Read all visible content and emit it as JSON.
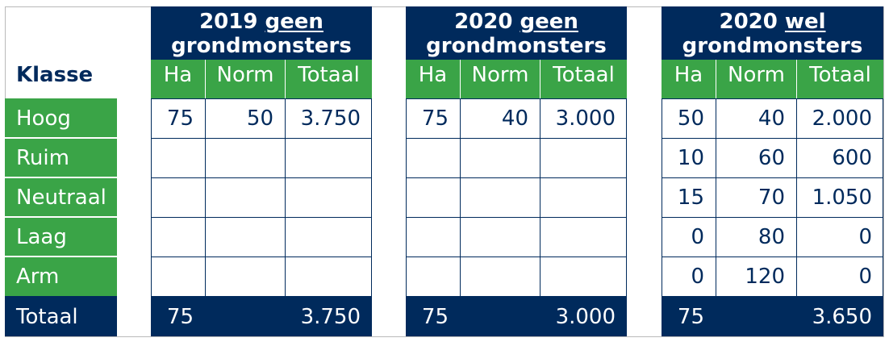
{
  "header": {
    "klasse_label": "Klasse",
    "groups": [
      {
        "year": "2019",
        "qualifier": "geen",
        "subject": "grondmonsters"
      },
      {
        "year": "2020",
        "qualifier": "geen",
        "subject": "grondmonsters"
      },
      {
        "year": "2020",
        "qualifier": "wel",
        "subject": "grondmonsters"
      }
    ],
    "columns": [
      "Ha",
      "Norm",
      "Totaal"
    ]
  },
  "rows": [
    {
      "label": "Hoog",
      "g1": [
        "75",
        "50",
        "3.750"
      ],
      "g2": [
        "75",
        "40",
        "3.000"
      ],
      "g3": [
        "50",
        "40",
        "2.000"
      ]
    },
    {
      "label": "Ruim",
      "g1": [
        "",
        "",
        ""
      ],
      "g2": [
        "",
        "",
        ""
      ],
      "g3": [
        "10",
        "60",
        "600"
      ]
    },
    {
      "label": "Neutraal",
      "g1": [
        "",
        "",
        ""
      ],
      "g2": [
        "",
        "",
        ""
      ],
      "g3": [
        "15",
        "70",
        "1.050"
      ]
    },
    {
      "label": "Laag",
      "g1": [
        "",
        "",
        ""
      ],
      "g2": [
        "",
        "",
        ""
      ],
      "g3": [
        "0",
        "80",
        "0"
      ]
    },
    {
      "label": "Arm",
      "g1": [
        "",
        "",
        ""
      ],
      "g2": [
        "",
        "",
        ""
      ],
      "g3": [
        "0",
        "120",
        "0"
      ]
    }
  ],
  "totals": {
    "label": "Totaal",
    "g1": {
      "ha": "75",
      "totaal": "3.750"
    },
    "g2": {
      "ha": "75",
      "totaal": "3.000"
    },
    "g3": {
      "ha": "75",
      "totaal": "3.650"
    }
  },
  "colors": {
    "navy": "#002a5c",
    "green": "#3aa447",
    "text_dark": "#002a5c",
    "text_light": "#ffffff"
  }
}
